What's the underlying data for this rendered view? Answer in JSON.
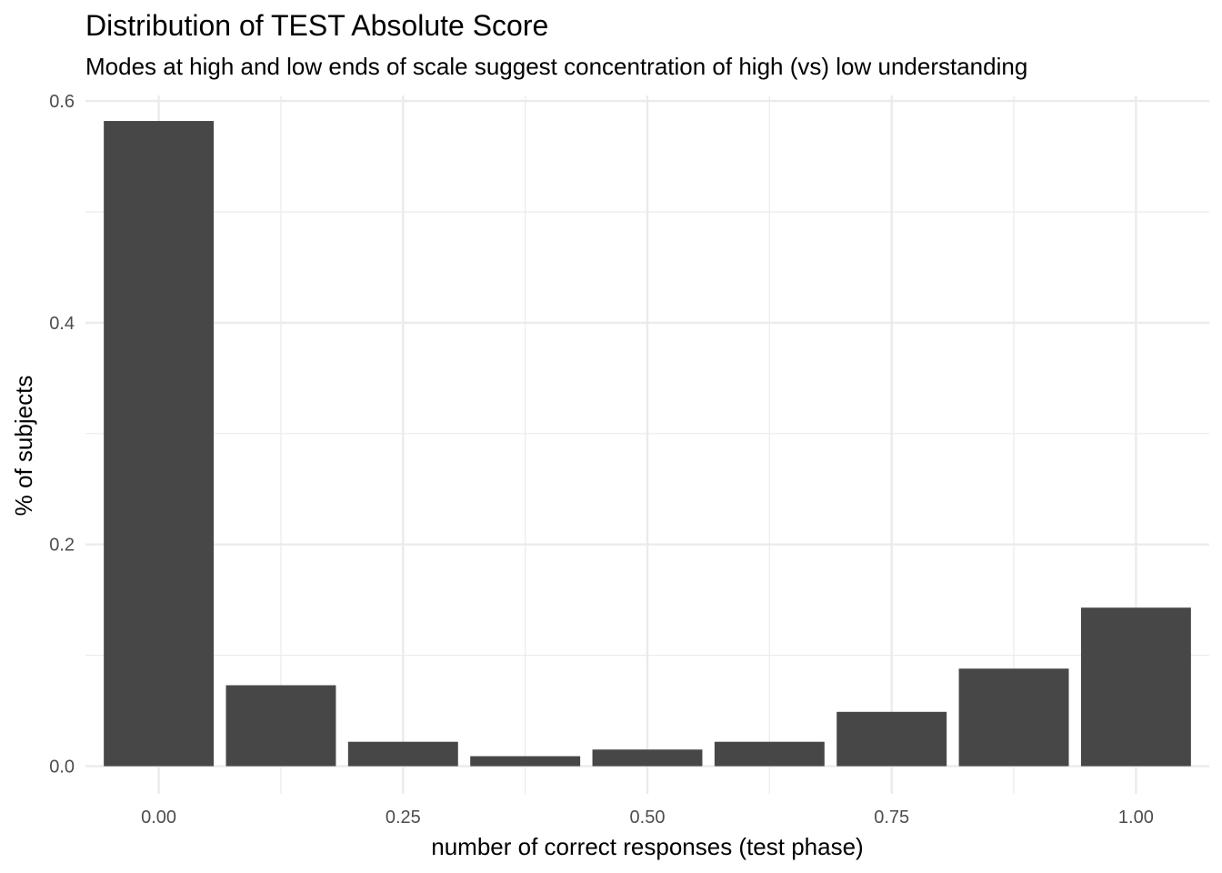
{
  "chart_data": {
    "type": "bar",
    "title": "Distribution of TEST Absolute Score",
    "subtitle": "Modes at high and low ends of scale suggest concentration of high (vs) low understanding",
    "xlabel": "number of correct responses (test phase)",
    "ylabel": "% of subjects",
    "xlim": [
      -0.075,
      1.075
    ],
    "ylim": [
      -0.025,
      0.605
    ],
    "x_ticks": [
      {
        "value": 0.0,
        "label": "0.00"
      },
      {
        "value": 0.25,
        "label": "0.25"
      },
      {
        "value": 0.5,
        "label": "0.50"
      },
      {
        "value": 0.75,
        "label": "0.75"
      },
      {
        "value": 1.0,
        "label": "1.00"
      }
    ],
    "y_ticks": [
      {
        "value": 0.0,
        "label": "0.0"
      },
      {
        "value": 0.2,
        "label": "0.2"
      },
      {
        "value": 0.4,
        "label": "0.4"
      },
      {
        "value": 0.6,
        "label": "0.6"
      }
    ],
    "x_minor_ticks": [
      0.125,
      0.375,
      0.625,
      0.875
    ],
    "y_minor_ticks": [
      0.1,
      0.3,
      0.5
    ],
    "bar_width": 0.1125,
    "x": [
      0.0,
      0.125,
      0.25,
      0.375,
      0.5,
      0.625,
      0.75,
      0.875,
      1.0
    ],
    "values": [
      0.582,
      0.073,
      0.022,
      0.009,
      0.015,
      0.022,
      0.049,
      0.088,
      0.143
    ],
    "bar_color": "#474747",
    "grid": true,
    "legend": "none"
  }
}
